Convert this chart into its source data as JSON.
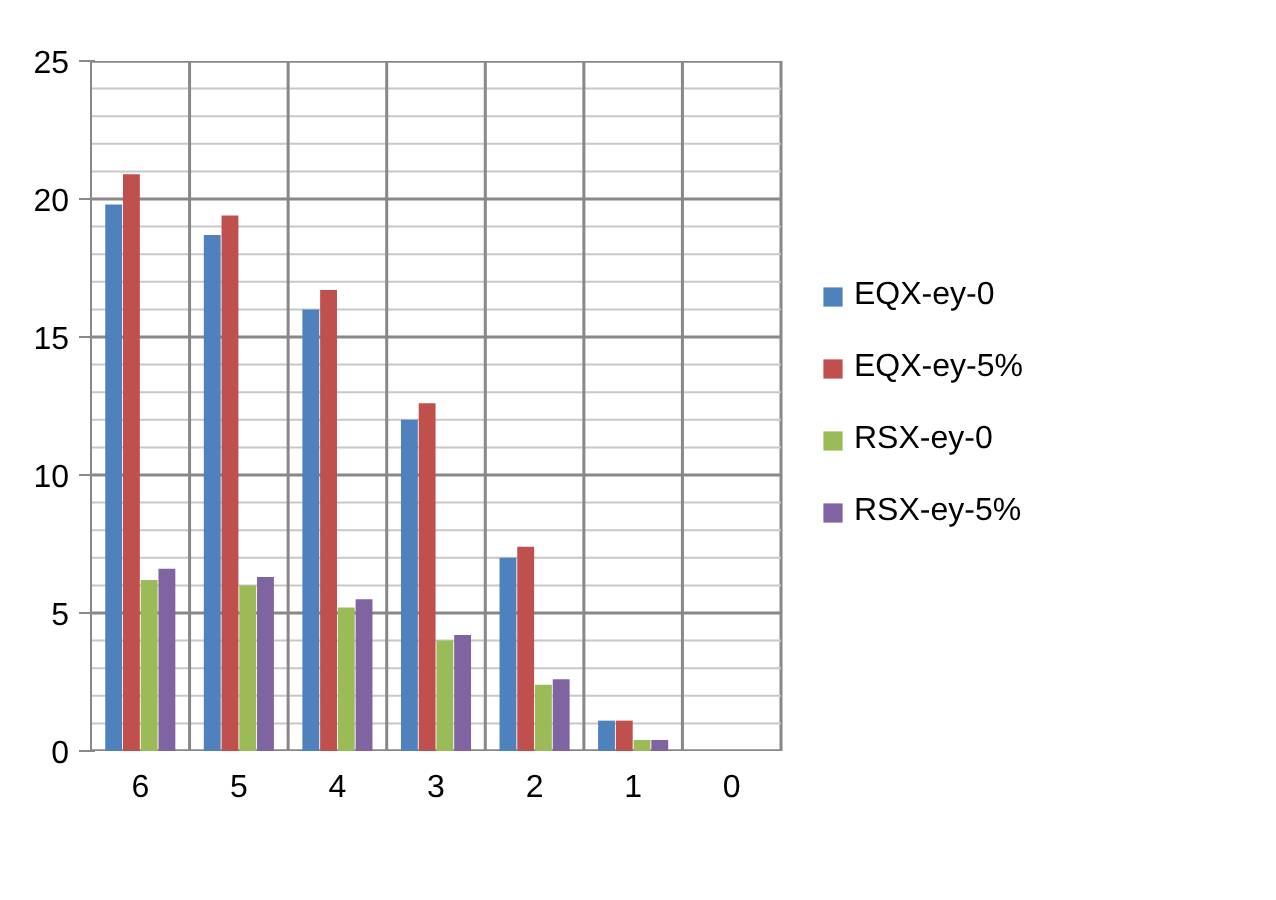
{
  "chart_data": {
    "type": "bar",
    "categories": [
      "6",
      "5",
      "4",
      "3",
      "2",
      "1",
      "0"
    ],
    "series": [
      {
        "name": "EQX-ey-0",
        "color": "#4f81bd",
        "values": [
          19.8,
          18.7,
          16.0,
          12.0,
          7.0,
          1.1,
          0
        ]
      },
      {
        "name": "EQX-ey-5%",
        "color": "#c0504d",
        "values": [
          20.9,
          19.4,
          16.7,
          12.6,
          7.4,
          1.1,
          0
        ]
      },
      {
        "name": "RSX-ey-0",
        "color": "#9bbb59",
        "values": [
          6.2,
          6.0,
          5.2,
          4.0,
          2.4,
          0.4,
          0
        ]
      },
      {
        "name": "RSX-ey-5%",
        "color": "#8064a2",
        "values": [
          6.6,
          6.3,
          5.5,
          4.2,
          2.6,
          0.4,
          0
        ]
      }
    ],
    "ylim": [
      0,
      25
    ],
    "yticks": [
      0,
      5,
      10,
      15,
      20,
      25
    ],
    "grid": true,
    "legend": "right"
  }
}
